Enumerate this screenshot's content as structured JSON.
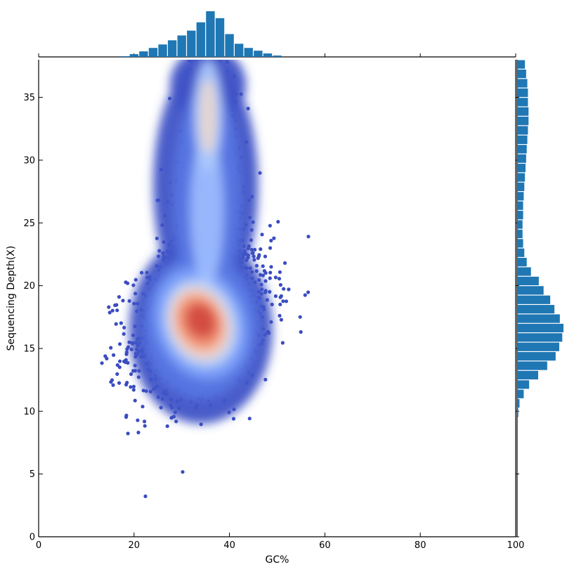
{
  "chart_data": {
    "type": "scatter",
    "subtype": "joint plot: density-colored scatter with marginal histograms",
    "xlabel": "GC%",
    "ylabel": "Sequencing Depth(X)",
    "xlim": [
      0,
      100
    ],
    "ylim": [
      0,
      38
    ],
    "xticks": [
      "0",
      "20",
      "40",
      "60",
      "80",
      "100"
    ],
    "yticks": [
      "0",
      "5",
      "10",
      "15",
      "20",
      "25",
      "30",
      "35"
    ],
    "colormap": "coolwarm",
    "colors": {
      "low_density": "#3b4cc0",
      "mid_density": "#dddddd",
      "high_density": "#b40426",
      "histogram": "#1f77b4"
    },
    "density_modes": [
      {
        "gc": 34,
        "depth": 17.2,
        "note": "main cluster"
      },
      {
        "gc": 35.5,
        "depth": 33.5,
        "note": "secondary cluster"
      }
    ],
    "scatter_extent": {
      "gc_min": 11,
      "gc_max": 57,
      "depth_min": 3,
      "depth_max": 38
    },
    "top_histogram": {
      "bin_edges": [
        17,
        19,
        21,
        23,
        25,
        27,
        29,
        31,
        33,
        35,
        37,
        39,
        41,
        43,
        45,
        47,
        49,
        51
      ],
      "counts": [
        1,
        4,
        8,
        13,
        18,
        24,
        31,
        38,
        50,
        66,
        56,
        33,
        19,
        13,
        9,
        5,
        2
      ]
    },
    "right_histogram": {
      "bin_edges": [
        9.5,
        10.25,
        11,
        11.75,
        12.5,
        13.25,
        14,
        14.75,
        15.5,
        16.25,
        17,
        17.75,
        18.5,
        19.25,
        20,
        20.75,
        21.5,
        22.25,
        23,
        23.75,
        24.5,
        25.25,
        26,
        26.75,
        27.5,
        28.25,
        29,
        29.75,
        30.5,
        31.25,
        32,
        32.75,
        33.5,
        34.25,
        35,
        35.75,
        36.5,
        37.25,
        38
      ],
      "counts": [
        2,
        4,
        11,
        20,
        35,
        50,
        64,
        70,
        75,
        77,
        71,
        62,
        55,
        44,
        36,
        23,
        16,
        12,
        10,
        9,
        9,
        10,
        10,
        11,
        12,
        13,
        14,
        15,
        16,
        17,
        18,
        19,
        19,
        18,
        18,
        17,
        15,
        13
      ]
    }
  }
}
